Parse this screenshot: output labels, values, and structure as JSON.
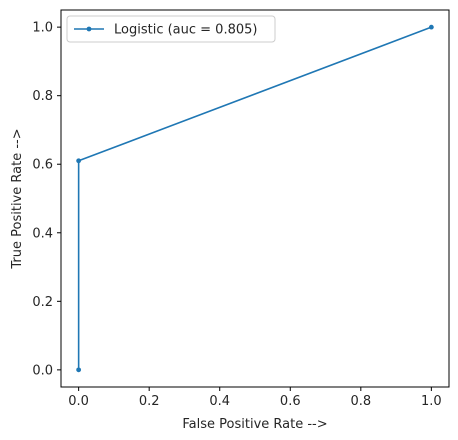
{
  "chart_data": {
    "type": "line",
    "title": "",
    "xlabel": "False Positive Rate -->",
    "ylabel": "True Positive Rate -->",
    "xlim": [
      -0.05,
      1.05
    ],
    "ylim": [
      -0.05,
      1.05
    ],
    "xticks": [
      0.0,
      0.2,
      0.4,
      0.6,
      0.8,
      1.0
    ],
    "yticks": [
      0.0,
      0.2,
      0.4,
      0.6,
      0.8,
      1.0
    ],
    "xtick_labels": [
      "0.0",
      "0.2",
      "0.4",
      "0.6",
      "0.8",
      "1.0"
    ],
    "ytick_labels": [
      "0.0",
      "0.2",
      "0.4",
      "0.6",
      "0.8",
      "1.0"
    ],
    "grid": false,
    "legend_position": "top-left",
    "series": [
      {
        "name": "Logistic (auc = 0.805)",
        "color": "#1f77b4",
        "marker": "point",
        "x": [
          0.0,
          0.0,
          1.0
        ],
        "y": [
          0.0,
          0.61,
          1.0
        ]
      }
    ]
  }
}
